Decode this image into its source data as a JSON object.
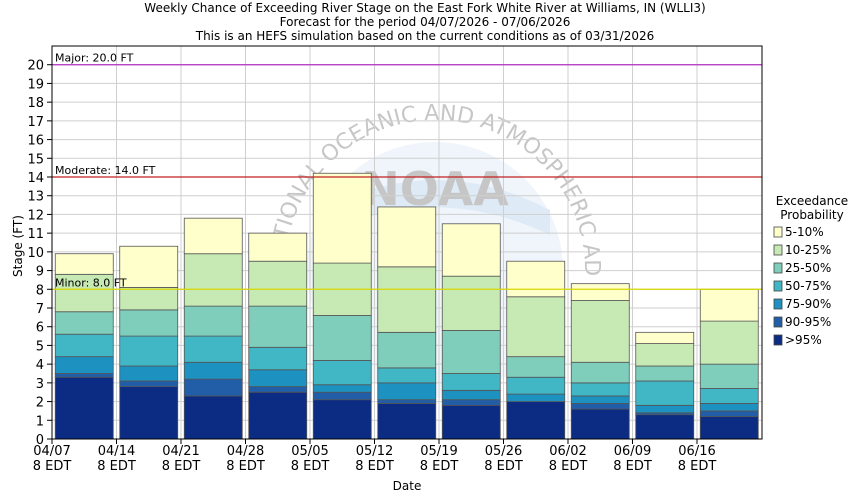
{
  "title_lines": [
    "Weekly Chance of Exceeding River Stage on the East Fork White River at Williams, IN (WLLI3)",
    "Forecast for the period 04/07/2026 - 07/06/2026",
    "This is an HEFS simulation based on the current conditions as of 03/31/2026"
  ],
  "watermark": {
    "logo_text": "NOAA",
    "ring_text": "NATIONAL OCEANIC AND ATMOSPHERIC ADMINISTRATION"
  },
  "chart_data": {
    "type": "bar",
    "stacked": true,
    "xlabel": "Date",
    "ylabel": "Stage (FT)",
    "ylim": [
      0,
      21
    ],
    "yticks": [
      0,
      1,
      2,
      3,
      4,
      5,
      6,
      7,
      8,
      9,
      10,
      11,
      12,
      13,
      14,
      15,
      16,
      17,
      18,
      19,
      20
    ],
    "grid": true,
    "xtick_labels": [
      {
        "date": "04/07",
        "time": "8 EDT"
      },
      {
        "date": "04/14",
        "time": "8 EDT"
      },
      {
        "date": "04/21",
        "time": "8 EDT"
      },
      {
        "date": "04/28",
        "time": "8 EDT"
      },
      {
        "date": "05/05",
        "time": "8 EDT"
      },
      {
        "date": "05/12",
        "time": "8 EDT"
      },
      {
        "date": "05/19",
        "time": "8 EDT"
      },
      {
        "date": "05/26",
        "time": "8 EDT"
      },
      {
        "date": "06/02",
        "time": "8 EDT"
      },
      {
        "date": "06/09",
        "time": "8 EDT"
      },
      {
        "date": "06/16",
        "time": "8 EDT"
      }
    ],
    "weeks": [
      "04/07",
      "04/14",
      "04/21",
      "04/28",
      "05/05",
      "05/12",
      "05/19",
      "05/26",
      "06/02",
      "06/09",
      "06/16"
    ],
    "thresholds": [
      {
        "label": "Major: 20.0 FT",
        "value": 20.0,
        "color": "#b030c0"
      },
      {
        "label": "Moderate: 14.0 FT",
        "value": 14.0,
        "color": "#c02020"
      },
      {
        "label": "Minor: 8.0 FT",
        "value": 8.0,
        "color": "#d8d800"
      }
    ],
    "legend": {
      "title_lines": [
        "Exceedance",
        "Probability"
      ],
      "placement": "right",
      "entries": [
        {
          "label": "5-10%",
          "color": "#ffffcc"
        },
        {
          "label": "10-25%",
          "color": "#c7e9b4"
        },
        {
          "label": "25-50%",
          "color": "#7fcdbb"
        },
        {
          "label": "50-75%",
          "color": "#41b6c4"
        },
        {
          "label": "75-90%",
          "color": "#1d91c0"
        },
        {
          "label": "90-95%",
          "color": "#225ea8"
        },
        {
          "label": ">95%",
          "color": "#0c2c84"
        }
      ]
    },
    "bars": [
      {
        "week": "04/07",
        "levels": [
          3.3,
          3.5,
          4.4,
          5.6,
          6.8,
          8.8,
          9.9
        ]
      },
      {
        "week": "04/14",
        "levels": [
          2.8,
          3.1,
          3.9,
          5.5,
          6.9,
          8.1,
          10.3
        ]
      },
      {
        "week": "04/21",
        "levels": [
          2.3,
          3.2,
          4.1,
          5.5,
          7.1,
          9.9,
          11.8
        ]
      },
      {
        "week": "04/28",
        "levels": [
          2.5,
          2.8,
          3.7,
          4.9,
          7.1,
          9.5,
          11.0
        ]
      },
      {
        "week": "05/05",
        "levels": [
          2.1,
          2.5,
          2.9,
          4.2,
          6.6,
          9.4,
          14.2
        ]
      },
      {
        "week": "05/12",
        "levels": [
          1.9,
          2.1,
          3.0,
          3.8,
          5.7,
          9.2,
          12.4
        ]
      },
      {
        "week": "05/19",
        "levels": [
          1.8,
          2.1,
          2.6,
          3.5,
          5.8,
          8.7,
          11.5
        ]
      },
      {
        "week": "05/26",
        "levels": [
          2.0,
          2.0,
          2.4,
          3.3,
          4.4,
          7.6,
          9.5
        ]
      },
      {
        "week": "06/02",
        "levels": [
          1.6,
          1.9,
          2.3,
          3.0,
          4.1,
          7.4,
          8.3
        ]
      },
      {
        "week": "06/09",
        "levels": [
          1.3,
          1.4,
          1.8,
          3.1,
          3.9,
          5.1,
          5.7
        ]
      },
      {
        "week": "06/16",
        "levels": [
          1.2,
          1.5,
          1.9,
          2.7,
          4.0,
          6.3,
          8.0
        ]
      }
    ]
  }
}
